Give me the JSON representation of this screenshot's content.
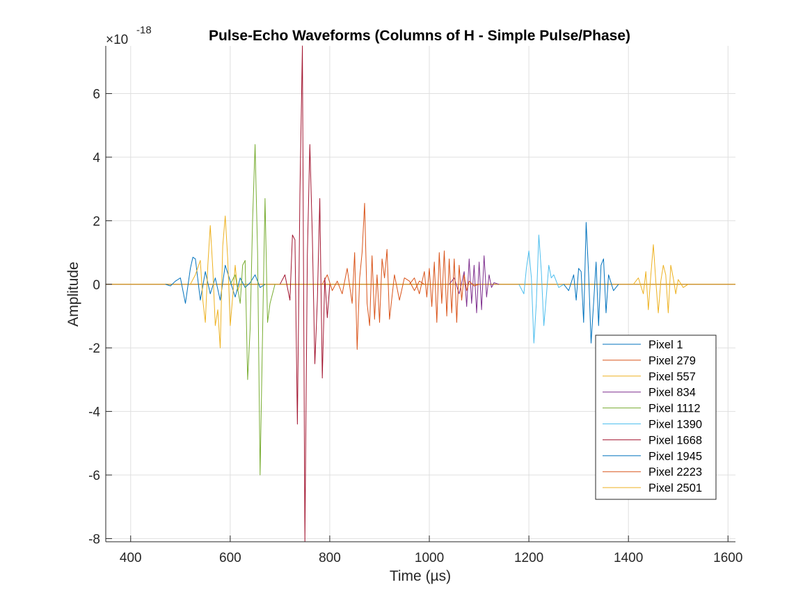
{
  "chart_data": {
    "type": "line",
    "title": "Pulse-Echo Waveforms (Columns of H - Simple Pulse/Phase)",
    "xlabel": "Time (µs)",
    "ylabel": "Amplitude",
    "exponent_label": "×10",
    "exponent_power": "-18",
    "xlim": [
      350,
      1615
    ],
    "ylim": [
      -8.1,
      7.5
    ],
    "xticks": [
      400,
      600,
      800,
      1000,
      1200,
      1400,
      1600
    ],
    "yticks": [
      -8,
      -6,
      -4,
      -2,
      0,
      2,
      4,
      6
    ],
    "grid": true,
    "box": "axes-lines-left-bottom",
    "legend_position": "lower-right",
    "baseline_x": [
      350,
      1615
    ],
    "series": [
      {
        "name": "Pixel 1",
        "color": "#0072BD",
        "x": [
          470,
          480,
          490,
          500,
          510,
          520,
          525,
          530,
          540,
          550,
          560,
          570,
          580,
          590,
          600,
          610,
          620,
          630,
          640,
          650,
          660,
          670
        ],
        "y": [
          0,
          -0.05,
          0.1,
          0.2,
          -0.6,
          0.5,
          0.85,
          0.8,
          -0.5,
          0.4,
          -0.3,
          0.2,
          -0.5,
          0.6,
          0.1,
          -0.4,
          0.2,
          -0.1,
          0.05,
          0.3,
          -0.1,
          0
        ]
      },
      {
        "name": "Pixel 279",
        "color": "#D95319",
        "x": [
          785,
          795,
          805,
          815,
          825,
          835,
          845,
          850,
          855,
          860,
          865,
          870,
          875,
          880,
          885,
          890,
          895,
          900,
          905,
          910,
          915,
          920,
          930,
          940,
          950,
          960,
          970,
          980,
          990
        ],
        "y": [
          0,
          0.3,
          -0.2,
          0.1,
          -0.3,
          0.5,
          -0.6,
          1.0,
          -2.05,
          0.2,
          1.0,
          2.55,
          -0.6,
          -1.3,
          0.9,
          -1.1,
          0.3,
          -1.2,
          0.8,
          0.2,
          1.1,
          -1.1,
          0.3,
          -0.5,
          0.2,
          0.1,
          -0.2,
          0.1,
          0
        ]
      },
      {
        "name": "Pixel 557",
        "color": "#EDB120",
        "x": [
          520,
          530,
          540,
          545,
          550,
          555,
          560,
          565,
          570,
          575,
          580,
          585,
          590,
          595,
          600,
          605,
          610,
          615,
          620
        ],
        "y": [
          0,
          0.3,
          0.75,
          -0.5,
          -1.2,
          0.6,
          1.85,
          0.5,
          -1.3,
          -0.8,
          -2.0,
          1.2,
          2.15,
          0.8,
          -1.3,
          -0.4,
          0.6,
          -0.2,
          0
        ]
      },
      {
        "name": "Pixel 834",
        "color": "#7E2F8E",
        "x": [
          1040,
          1050,
          1060,
          1070,
          1075,
          1080,
          1085,
          1090,
          1095,
          1100,
          1105,
          1110,
          1115,
          1120,
          1125,
          1130,
          1140
        ],
        "y": [
          0,
          0.2,
          -0.3,
          0.4,
          -0.7,
          0.8,
          -0.6,
          0.6,
          -0.9,
          0.7,
          -0.8,
          0.9,
          -0.4,
          0.3,
          -0.1,
          0.05,
          0
        ]
      },
      {
        "name": "Pixel 1112",
        "color": "#77AC30",
        "x": [
          600,
          610,
          620,
          625,
          630,
          635,
          640,
          645,
          650,
          655,
          660,
          665,
          670,
          675,
          680,
          690
        ],
        "y": [
          0,
          0.3,
          -0.6,
          0.6,
          0.75,
          -3.0,
          -1.4,
          2.0,
          4.4,
          1.0,
          -6.0,
          -1.5,
          2.7,
          -1.2,
          -0.6,
          0
        ]
      },
      {
        "name": "Pixel 1390",
        "color": "#4DBEEE",
        "x": [
          1180,
          1190,
          1195,
          1200,
          1205,
          1210,
          1215,
          1220,
          1225,
          1230,
          1235,
          1240,
          1245,
          1250,
          1260,
          1270
        ],
        "y": [
          0,
          -0.3,
          0.5,
          1.05,
          0.2,
          -1.85,
          -0.6,
          1.55,
          0.4,
          -1.3,
          -0.4,
          0.6,
          0.2,
          0.3,
          -0.1,
          0
        ]
      },
      {
        "name": "Pixel 1668",
        "color": "#A2142F",
        "x": [
          700,
          710,
          720,
          725,
          730,
          735,
          740,
          745,
          750,
          755,
          760,
          765,
          770,
          775,
          780,
          785,
          790,
          795,
          800
        ],
        "y": [
          0,
          0.3,
          -0.5,
          1.55,
          1.4,
          -4.4,
          2.8,
          7.5,
          -8.1,
          0.9,
          4.4,
          1.5,
          -2.5,
          -0.5,
          2.7,
          -2.95,
          0.2,
          -1.05,
          0
        ]
      },
      {
        "name": "Pixel 1945",
        "color": "#0072BD",
        "x": [
          1270,
          1280,
          1290,
          1295,
          1300,
          1305,
          1310,
          1315,
          1320,
          1325,
          1330,
          1335,
          1340,
          1345,
          1350,
          1355,
          1360,
          1370,
          1380
        ],
        "y": [
          0,
          -0.2,
          0.3,
          -0.5,
          0.5,
          0.4,
          -1.2,
          1.95,
          0.3,
          -1.85,
          -0.6,
          0.7,
          -1.3,
          0.6,
          0.8,
          -0.9,
          0.3,
          -0.2,
          0
        ]
      },
      {
        "name": "Pixel 2223",
        "color": "#D95319",
        "x": [
          960,
          970,
          980,
          990,
          995,
          1000,
          1005,
          1010,
          1015,
          1020,
          1025,
          1030,
          1035,
          1040,
          1045,
          1050,
          1055,
          1060,
          1065,
          1070,
          1075,
          1080,
          1090,
          1100
        ],
        "y": [
          0,
          0.2,
          -0.3,
          0.4,
          -0.4,
          0.5,
          -0.7,
          0.7,
          -1.2,
          1.0,
          -0.6,
          1.05,
          -1.0,
          0.8,
          -0.9,
          0.8,
          -1.2,
          0.6,
          -0.5,
          0.3,
          -0.2,
          0.1,
          -0.05,
          0
        ]
      },
      {
        "name": "Pixel 2501",
        "color": "#EDB120",
        "x": [
          1410,
          1420,
          1430,
          1435,
          1440,
          1445,
          1450,
          1455,
          1460,
          1465,
          1470,
          1475,
          1480,
          1485,
          1490,
          1495,
          1500,
          1510,
          1520
        ],
        "y": [
          0,
          0.2,
          -0.3,
          0.4,
          -0.8,
          0.3,
          1.25,
          0.1,
          -0.9,
          0.1,
          0.6,
          0.3,
          -0.9,
          0.6,
          0.2,
          -0.3,
          0.15,
          -0.1,
          0
        ]
      }
    ]
  }
}
